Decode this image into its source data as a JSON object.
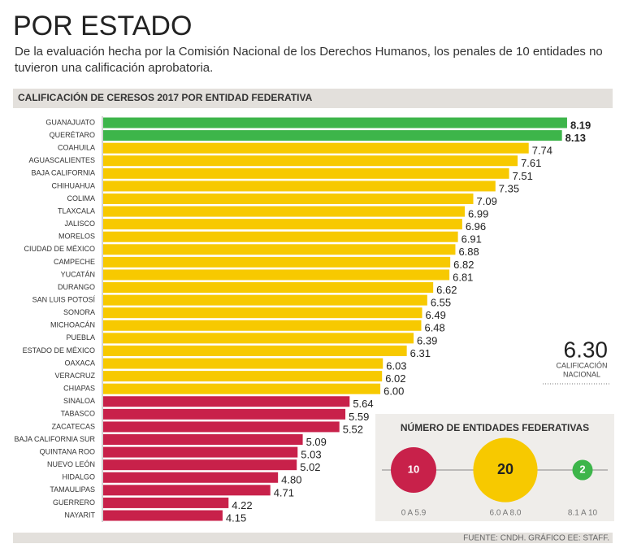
{
  "chart_data": {
    "type": "bar",
    "orientation": "horizontal",
    "title": "POR ESTADO",
    "subtitle": "De la evaluación hecha por la Comisión Nacional de los Derechos Humanos, los penales de 10 entidades no tuvieron una calificación aprobatoria.",
    "chart_title": "CALIFICACIÓN DE CERESOS 2017 POR ENTIDAD FEDERATIVA",
    "categories": [
      "GUANAJUATO",
      "QUERÉTARO",
      "COAHUILA",
      "AGUASCALIENTES",
      "BAJA CALIFORNIA",
      "CHIHUAHUA",
      "COLIMA",
      "TLAXCALA",
      "JALISCO",
      "MORELOS",
      "CIUDAD DE MÉXICO",
      "CAMPECHE",
      "YUCATÁN",
      "DURANGO",
      "SAN LUIS POTOSÍ",
      "SONORA",
      "MICHOACÁN",
      "PUEBLA",
      "ESTADO DE MÉXICO",
      "OAXACA",
      "VERACRUZ",
      "CHIAPAS",
      "SINALOA",
      "TABASCO",
      "ZACATECAS",
      "BAJA CALIFORNIA SUR",
      "QUINTANA ROO",
      "NUEVO LEÓN",
      "HIDALGO",
      "TAMAULIPAS",
      "GUERRERO",
      "NAYARIT"
    ],
    "values": [
      8.19,
      8.13,
      7.74,
      7.61,
      7.51,
      7.35,
      7.09,
      6.99,
      6.96,
      6.91,
      6.88,
      6.82,
      6.81,
      6.62,
      6.55,
      6.49,
      6.48,
      6.39,
      6.31,
      6.03,
      6.02,
      6.0,
      5.64,
      5.59,
      5.52,
      5.09,
      5.03,
      5.02,
      4.8,
      4.71,
      4.22,
      4.15
    ],
    "value_labels": [
      "8.19",
      "8.13",
      "7.74",
      "7.61",
      "7.51",
      "7.35",
      "7.09",
      "6.99",
      "6.96",
      "6.91",
      "6.88",
      "6.82",
      "6.81",
      "6.62",
      "6.55",
      "6.49",
      "6.48",
      "6.39",
      "6.31",
      "6.03",
      "6.02",
      "6.00",
      "5.64",
      "5.59",
      "5.52",
      "5.09",
      "5.03",
      "5.02",
      "4.80",
      "4.71",
      "4.22",
      "4.15"
    ],
    "bar_groups": [
      2,
      2,
      1,
      1,
      1,
      1,
      1,
      1,
      1,
      1,
      1,
      1,
      1,
      1,
      1,
      1,
      1,
      1,
      1,
      1,
      1,
      1,
      0,
      0,
      0,
      0,
      0,
      0,
      0,
      0,
      0,
      0
    ],
    "xlim": [
      2.75,
      8.2
    ],
    "national": {
      "value": "6.30",
      "label": [
        "CALIFICACIÓN",
        "NACIONAL"
      ]
    },
    "groups_title": "NÚMERO DE ENTIDADES FEDERATIVAS",
    "groups": [
      {
        "name": "0 A 5.9",
        "count": 10,
        "color": "#c8214a",
        "bold": false
      },
      {
        "name": "6.0 A 8.0",
        "count": 20,
        "color": "#f7c900",
        "bold": false
      },
      {
        "name": "8.1 A 10",
        "count": 2,
        "color": "#3db54a",
        "bold": true
      }
    ],
    "source": "FUENTE: CNDH. GRÁFICO EE: STAFF."
  }
}
